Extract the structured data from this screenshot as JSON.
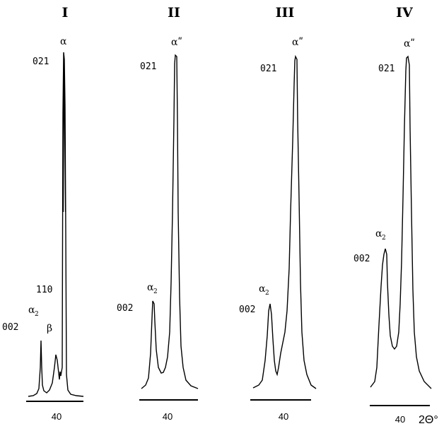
{
  "chart_data": {
    "type": "line",
    "x_axis_label": "2Θ°",
    "x_tick": "40",
    "panels": [
      {
        "title": "I",
        "labels": {
          "top_peak": "α",
          "hkl_021": "021",
          "hkl_110": "110",
          "hkl_002": "002",
          "alpha2": "α",
          "alpha2_sub": "2",
          "beta": "β"
        }
      },
      {
        "title": "II",
        "labels": {
          "top_peak": "αʺ",
          "hkl_021": "021",
          "hkl_002": "002",
          "alpha2": "α",
          "alpha2_sub": "2"
        }
      },
      {
        "title": "III",
        "labels": {
          "top_peak": "αʺ",
          "hkl_021": "021",
          "hkl_002": "002",
          "alpha2": "α",
          "alpha2_sub": "2"
        }
      },
      {
        "title": "IV",
        "labels": {
          "top_peak": "αʺ",
          "hkl_021": "021",
          "hkl_002": "002",
          "alpha2": "α",
          "alpha2_sub": "2"
        }
      }
    ]
  },
  "colors": {
    "line": "#000000",
    "background": "#ffffff"
  }
}
